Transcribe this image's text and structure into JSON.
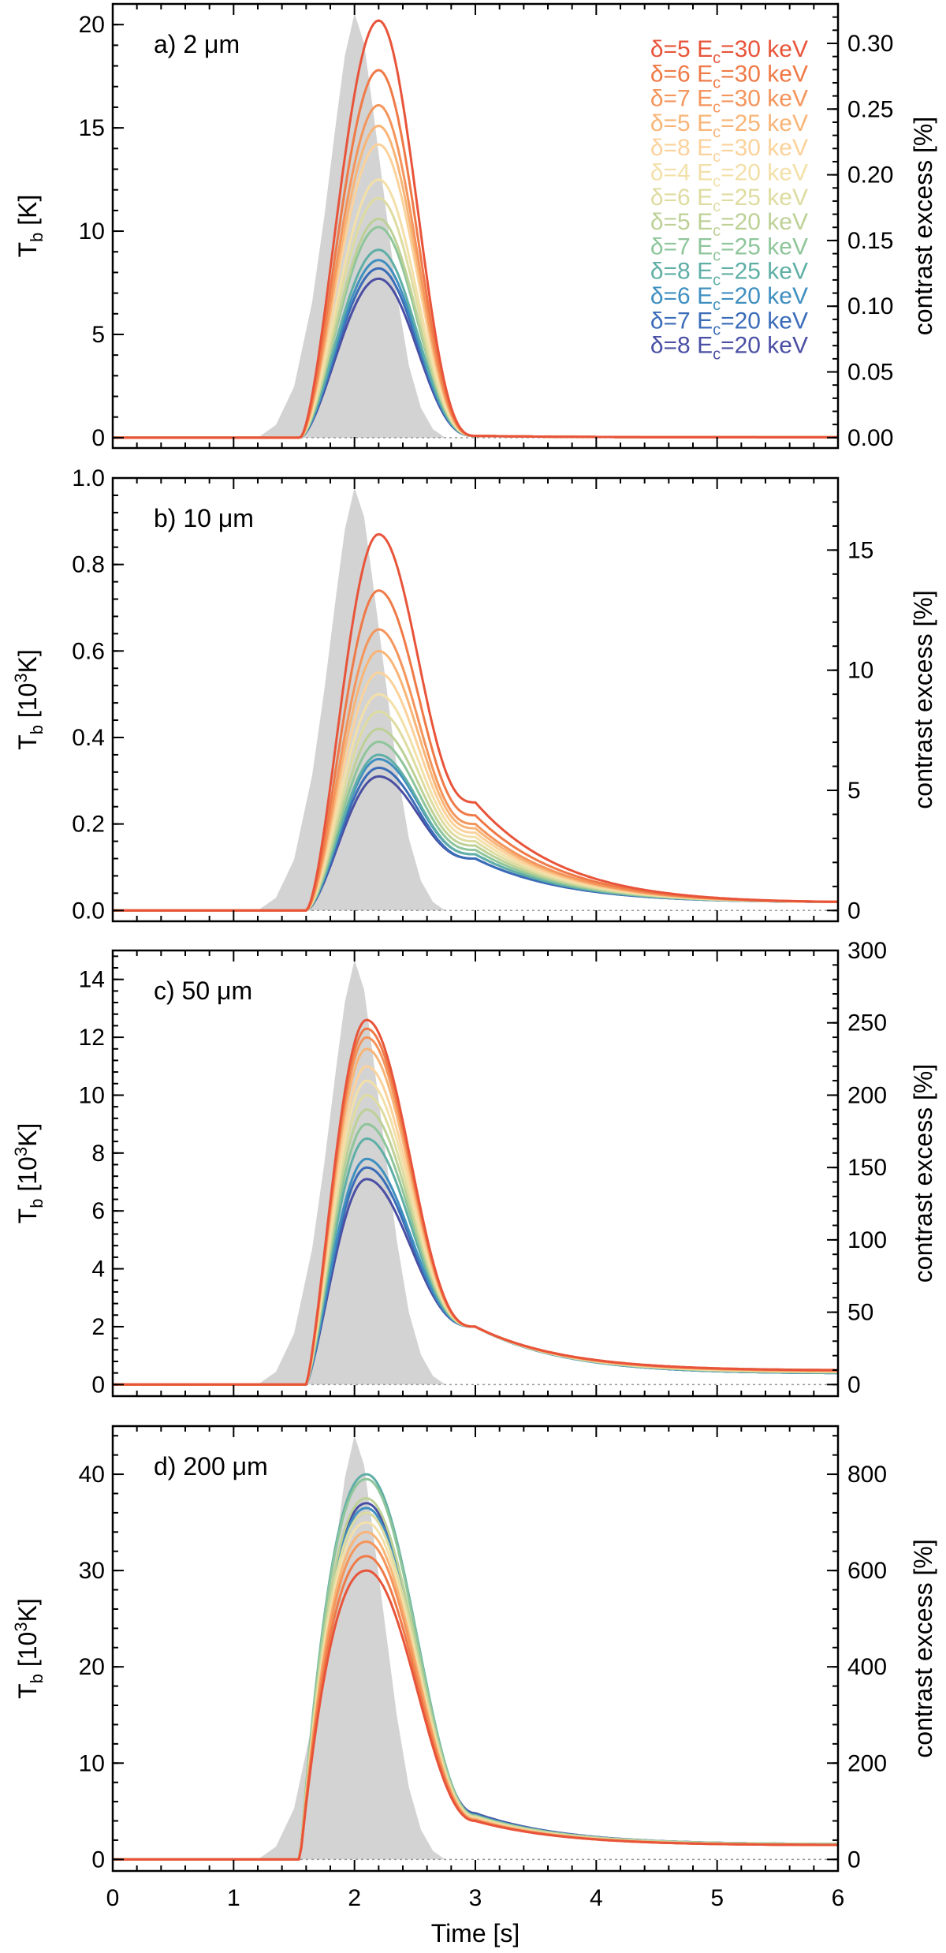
{
  "chart_data": {
    "type": "line",
    "xlabel": "Time [s]",
    "x_ticks": [
      "0",
      "1",
      "2",
      "3",
      "4",
      "5",
      "6"
    ],
    "xlim": [
      0,
      6
    ],
    "series_names": [
      "δ=5 Ec=30 keV",
      "δ=6 Ec=30 keV",
      "δ=7 Ec=30 keV",
      "δ=5 Ec=25 keV",
      "δ=8 Ec=30 keV",
      "δ=4 Ec=20 keV",
      "δ=6 Ec=25 keV",
      "δ=5 Ec=20 keV",
      "δ=7 Ec=25 keV",
      "δ=8 Ec=25 keV",
      "δ=6 Ec=20 keV",
      "δ=7 Ec=20 keV",
      "δ=8 Ec=20 keV"
    ],
    "legend": [
      {
        "delta": "δ=5",
        "ec": "E",
        "sub": "c",
        "tail": "=30 keV",
        "color": "#e8543a"
      },
      {
        "delta": "δ=6",
        "ec": "E",
        "sub": "c",
        "tail": "=30 keV",
        "color": "#ef7a47"
      },
      {
        "delta": "δ=7",
        "ec": "E",
        "sub": "c",
        "tail": "=30 keV",
        "color": "#f4955c"
      },
      {
        "delta": "δ=5",
        "ec": "E",
        "sub": "c",
        "tail": "=25 keV",
        "color": "#f8b577"
      },
      {
        "delta": "δ=8",
        "ec": "E",
        "sub": "c",
        "tail": "=30 keV",
        "color": "#fbd29b"
      },
      {
        "delta": "δ=4",
        "ec": "E",
        "sub": "c",
        "tail": "=20 keV",
        "color": "#f3e0a9"
      },
      {
        "delta": "δ=6",
        "ec": "E",
        "sub": "c",
        "tail": "=25 keV",
        "color": "#dedca0"
      },
      {
        "delta": "δ=5",
        "ec": "E",
        "sub": "c",
        "tail": "=20 keV",
        "color": "#bdd197"
      },
      {
        "delta": "δ=7",
        "ec": "E",
        "sub": "c",
        "tail": "=25 keV",
        "color": "#8ec59a"
      },
      {
        "delta": "δ=8",
        "ec": "E",
        "sub": "c",
        "tail": "=25 keV",
        "color": "#5fafa6"
      },
      {
        "delta": "δ=6",
        "ec": "E",
        "sub": "c",
        "tail": "=20 keV",
        "color": "#3f8fc0"
      },
      {
        "delta": "δ=7",
        "ec": "E",
        "sub": "c",
        "tail": "=20 keV",
        "color": "#3a6cb8"
      },
      {
        "delta": "δ=8",
        "ec": "E",
        "sub": "c",
        "tail": "=20 keV",
        "color": "#4a4fa3"
      }
    ],
    "background_profile": {
      "description": "gray filled electron-beam time profile",
      "x": [
        1.2,
        1.35,
        1.5,
        1.65,
        1.75,
        1.85,
        1.92,
        2.0,
        2.08,
        2.15,
        2.25,
        2.35,
        2.45,
        2.55,
        2.65,
        2.75
      ],
      "y": [
        0,
        0.03,
        0.12,
        0.32,
        0.52,
        0.75,
        0.9,
        1.0,
        0.93,
        0.78,
        0.56,
        0.34,
        0.17,
        0.07,
        0.02,
        0
      ]
    },
    "panels": [
      {
        "label": "a) 2 μm",
        "ylabel": "T",
        "ylabel_sub": "b",
        "ylabel_unit": " [K]",
        "ylabel_sup": "",
        "ylim": [
          -0.5,
          21
        ],
        "yticks": [
          0,
          5,
          10,
          15,
          20
        ],
        "ytick_labels": [
          "0",
          "5",
          "10",
          "15",
          "20"
        ],
        "y2label": "contrast excess [%]",
        "y2lim": [
          -0.0079,
          0.33
        ],
        "y2ticks": [
          0,
          0.05,
          0.1,
          0.15,
          0.2,
          0.25,
          0.3
        ],
        "y2tick_labels": [
          "0.00",
          "0.05",
          "0.10",
          "0.15",
          "0.20",
          "0.25",
          "0.30"
        ],
        "profile": "sharp",
        "onset": [
          1.55,
          0
        ],
        "peaks": [
          20.2,
          17.8,
          16.1,
          15.1,
          14.2,
          12.5,
          11.6,
          10.6,
          10.2,
          9.1,
          8.6,
          8.2,
          7.7
        ],
        "peak_time": 2.2,
        "tail_3s": [
          0.09,
          0.09,
          0.09,
          0.09,
          0.09,
          0.09,
          0.09,
          0.09,
          0.09,
          0.09,
          0.09,
          0.09,
          0.09
        ],
        "tail_6s": [
          0.02,
          0.02,
          0.02,
          0.02,
          0.02,
          0.02,
          0.02,
          0.02,
          0.02,
          0.02,
          0.02,
          0.02,
          0.02
        ]
      },
      {
        "label": "b) 10 μm",
        "ylabel": "T",
        "ylabel_sub": "b",
        "ylabel_unit": " [10",
        "ylabel_sup": "3",
        "ylabel_unit2": "K]",
        "ylim": [
          -0.025,
          1.0
        ],
        "yticks": [
          0,
          0.2,
          0.4,
          0.6,
          0.8,
          1.0
        ],
        "ytick_labels": [
          "0.0",
          "0.2",
          "0.4",
          "0.6",
          "0.8",
          "1.0"
        ],
        "y2label": "contrast excess [%]",
        "y2lim": [
          -0.45,
          18.0
        ],
        "y2ticks": [
          0,
          5,
          10,
          15
        ],
        "y2tick_labels": [
          "0",
          "5",
          "10",
          "15"
        ],
        "profile": "sharp",
        "onset": [
          1.6,
          0
        ],
        "peaks": [
          0.87,
          0.74,
          0.65,
          0.6,
          0.55,
          0.5,
          0.46,
          0.42,
          0.39,
          0.36,
          0.35,
          0.33,
          0.31
        ],
        "peak_time": 2.2,
        "tail_3s": [
          0.25,
          0.22,
          0.2,
          0.19,
          0.18,
          0.17,
          0.16,
          0.15,
          0.14,
          0.13,
          0.13,
          0.12,
          0.12
        ],
        "tail_6s": [
          0.02,
          0.02,
          0.02,
          0.02,
          0.02,
          0.02,
          0.02,
          0.02,
          0.02,
          0.02,
          0.02,
          0.02,
          0.02
        ]
      },
      {
        "label": "c) 50 μm",
        "ylabel": "T",
        "ylabel_sub": "b",
        "ylabel_unit": " [10",
        "ylabel_sup": "3",
        "ylabel_unit2": "K]",
        "ylim": [
          -0.4,
          15.0
        ],
        "yticks": [
          0,
          2,
          4,
          6,
          8,
          10,
          12,
          14
        ],
        "ytick_labels": [
          "0",
          "2",
          "4",
          "6",
          "8",
          "10",
          "12",
          "14"
        ],
        "y2label": "contrast excess [%]",
        "y2lim": [
          -8.0,
          300.0
        ],
        "y2ticks": [
          0,
          50,
          100,
          150,
          200,
          250,
          300
        ],
        "y2tick_labels": [
          "0",
          "50",
          "100",
          "150",
          "200",
          "250",
          "300"
        ],
        "profile": "broad",
        "onset": [
          1.6,
          0
        ],
        "peaks": [
          12.6,
          12.3,
          12.0,
          11.6,
          11.0,
          10.5,
          10.0,
          9.5,
          9.0,
          8.5,
          7.8,
          7.5,
          7.1
        ],
        "peak_time": 2.1,
        "tail_3s": [
          2.0,
          2.0,
          2.0,
          2.0,
          2.0,
          2.0,
          2.0,
          2.0,
          2.0,
          2.0,
          2.0,
          2.0,
          2.0
        ],
        "tail_6s": [
          0.5,
          0.5,
          0.48,
          0.47,
          0.46,
          0.45,
          0.44,
          0.43,
          0.42,
          0.41,
          0.4,
          0.4,
          0.4
        ]
      },
      {
        "label": "d) 200 μm",
        "ylabel": "T",
        "ylabel_sub": "b",
        "ylabel_unit": " [10",
        "ylabel_sup": "3",
        "ylabel_unit2": "K]",
        "ylim": [
          -1.2,
          45.0
        ],
        "yticks": [
          0,
          10,
          20,
          30,
          40
        ],
        "ytick_labels": [
          "0",
          "10",
          "20",
          "30",
          "40"
        ],
        "y2label": "contrast excess [%]",
        "y2lim": [
          -24.0,
          900.0
        ],
        "y2ticks": [
          0,
          200,
          400,
          600,
          800
        ],
        "y2tick_labels": [
          "0",
          "200",
          "400",
          "600",
          "800"
        ],
        "profile": "early",
        "onset": [
          1.55,
          0
        ],
        "peaks": [
          30.0,
          31.5,
          33.0,
          34.0,
          33.0,
          35.0,
          36.0,
          37.5,
          39.5,
          40.0,
          36.5,
          36.0,
          37.0
        ],
        "peak_time": 2.1,
        "tail_3s": [
          4.0,
          4.0,
          4.1,
          4.2,
          4.2,
          4.3,
          4.4,
          4.5,
          4.5,
          4.6,
          4.6,
          4.7,
          4.8
        ],
        "tail_6s": [
          1.5,
          1.5,
          1.5,
          1.5,
          1.5,
          1.5,
          1.5,
          1.6,
          1.6,
          1.6,
          1.6,
          1.6,
          1.6
        ]
      }
    ]
  }
}
